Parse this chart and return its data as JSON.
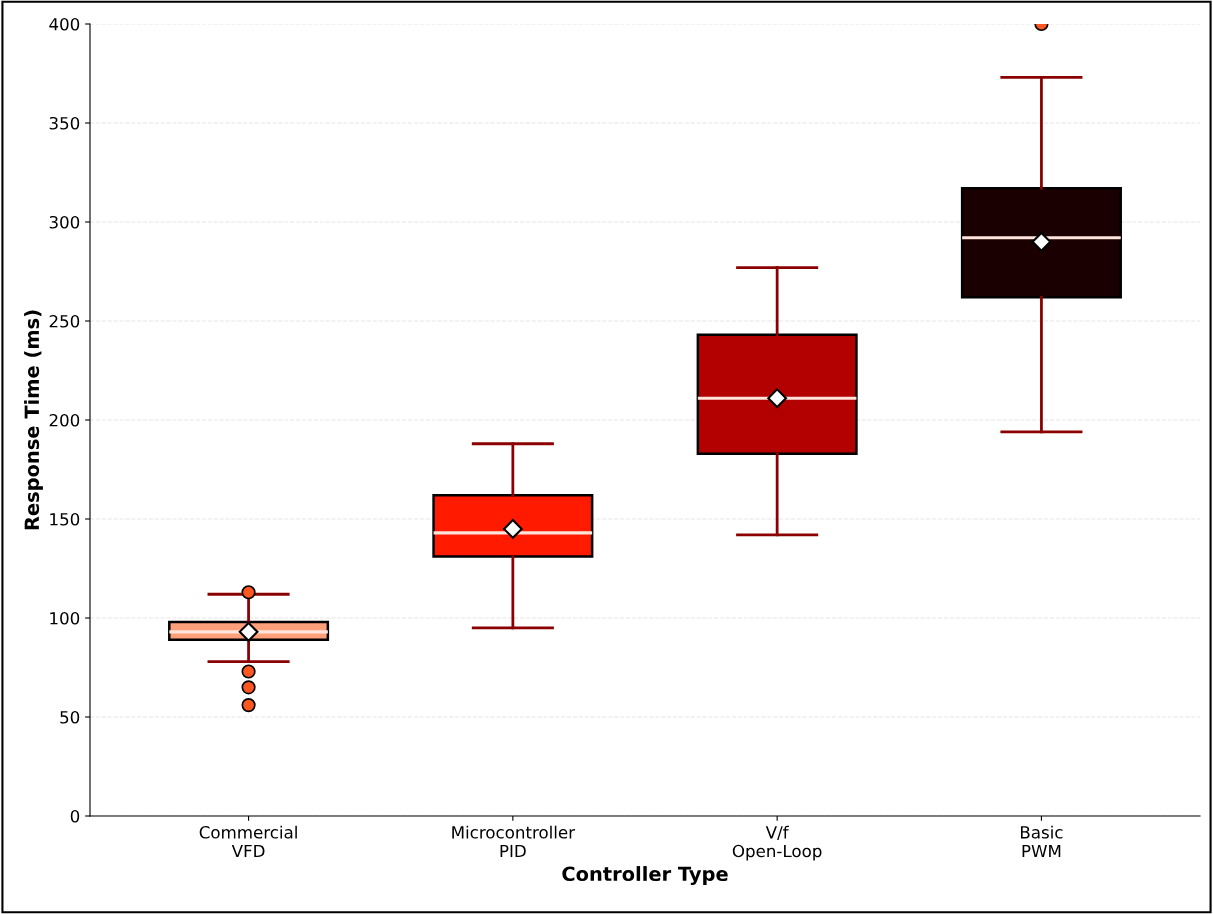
{
  "chart_data": {
    "type": "box",
    "xlabel": "Controller Type",
    "ylabel": "Response Time (ms)",
    "categories": [
      "Commercial\nVFD",
      "Microcontroller\nPID",
      "V/f\nOpen-Loop",
      "Basic\nPWM"
    ],
    "boxes": [
      {
        "low": 78,
        "q1": 89,
        "median": 93,
        "q3": 98,
        "high": 112,
        "mean": 93,
        "outliers": [
          113,
          73,
          65,
          56
        ]
      },
      {
        "low": 95,
        "q1": 131,
        "median": 143,
        "q3": 162,
        "high": 188,
        "mean": 145
      },
      {
        "low": 142,
        "q1": 183,
        "median": 211,
        "q3": 243,
        "high": 277,
        "mean": 211
      },
      {
        "low": 194,
        "q1": 262,
        "median": 292,
        "q3": 317,
        "high": 373,
        "mean": 290,
        "outliers": [
          400
        ]
      }
    ],
    "colors": [
      "#ffa07a",
      "#ff1a00",
      "#b30000",
      "#1a0000"
    ],
    "ylim": [
      0,
      400
    ],
    "yticks": [
      0,
      50,
      100,
      150,
      200,
      250,
      300,
      350,
      400
    ],
    "grid": "y"
  }
}
